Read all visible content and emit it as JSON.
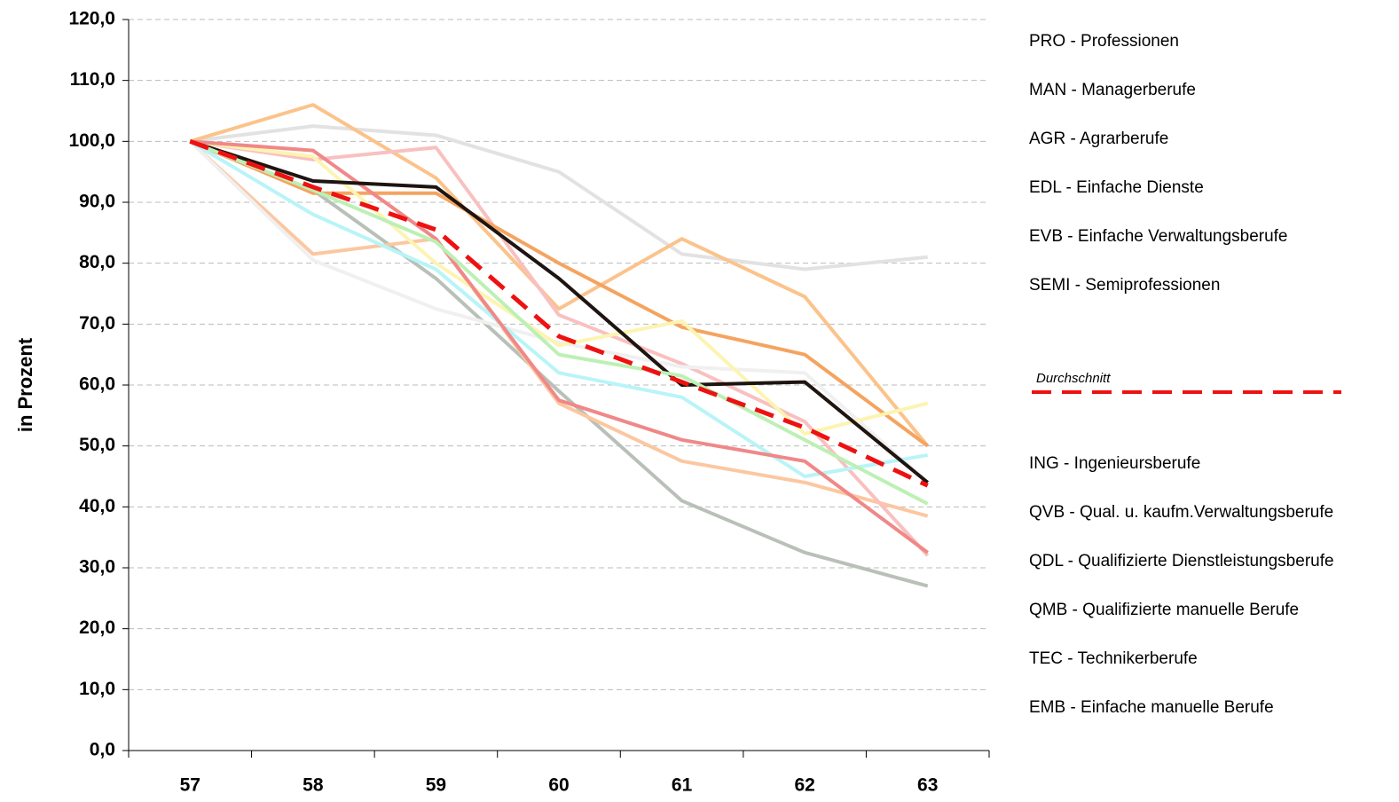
{
  "chart_data": {
    "type": "line",
    "y_label": "in Prozent",
    "categories": [
      "57",
      "58",
      "59",
      "60",
      "61",
      "62",
      "63"
    ],
    "ylim": [
      0,
      120
    ],
    "yticks": [
      {
        "value": 0,
        "label": "0,0"
      },
      {
        "value": 10,
        "label": "10,0"
      },
      {
        "value": 20,
        "label": "20,0"
      },
      {
        "value": 30,
        "label": "30,0"
      },
      {
        "value": 40,
        "label": "40,0"
      },
      {
        "value": 50,
        "label": "50,0"
      },
      {
        "value": 60,
        "label": "60,0"
      },
      {
        "value": 70,
        "label": "70,0"
      },
      {
        "value": 80,
        "label": "80,0"
      },
      {
        "value": 90,
        "label": "90,0"
      },
      {
        "value": 100,
        "label": "100,0"
      },
      {
        "value": 110,
        "label": "110,0"
      },
      {
        "value": 120,
        "label": "120,0"
      }
    ],
    "grid": true,
    "series": [
      {
        "name": "PRO - Professionen",
        "color": "#e2e2e2",
        "values": [
          100,
          102.5,
          101,
          95,
          81.5,
          79,
          81
        ]
      },
      {
        "name": "MAN - Managerberufe",
        "color": "#fbc38b",
        "values": [
          100,
          106,
          94,
          72.5,
          84,
          74.5,
          50
        ]
      },
      {
        "name": "AGR - Agrarberufe",
        "color": "#b8c0b8",
        "values": [
          100,
          92,
          77.5,
          59,
          41,
          32.5,
          27
        ]
      },
      {
        "name": "EDL - Einfache Dienste",
        "color": "#fcc7a0",
        "values": [
          100,
          81.5,
          84,
          57,
          47.5,
          44,
          38.5
        ]
      },
      {
        "name": "EVB - Einfache Verwaltungsberufe",
        "color": "#f9c0c0",
        "values": [
          100,
          97,
          99,
          71.5,
          63.5,
          54,
          32
        ]
      },
      {
        "name": "SEMI - Semiprofessionen",
        "color": "#f0f0f0",
        "values": [
          100,
          80.5,
          72.5,
          67,
          63,
          62,
          44
        ]
      },
      {
        "name": "Durchschnitt",
        "color": "#ee1111",
        "dashed": true,
        "values": [
          100,
          92.5,
          85.5,
          68,
          60.5,
          53,
          43.5
        ]
      },
      {
        "name": "ING - Ingenieursberufe",
        "color": "#f4a460",
        "values": [
          100,
          91.5,
          91.5,
          80,
          69.5,
          65,
          50
        ]
      },
      {
        "name": "QVB - Qual. u. kaufm.Verwaltungsberufe",
        "color": "#fcf4b0",
        "values": [
          100,
          97.5,
          80,
          66.5,
          70.5,
          52,
          57
        ]
      },
      {
        "name": "QDL - Qualifizierte Dienstleistungsberufe",
        "color": "#b8f4f8",
        "values": [
          100,
          88,
          79,
          62,
          58,
          45,
          48.5
        ]
      },
      {
        "name": "QMB - Qualifizierte manuelle Berufe",
        "color": "#f08888",
        "values": [
          100,
          98.5,
          84,
          57.5,
          51,
          47.5,
          32.5
        ]
      },
      {
        "name": "TEC - Technikerberufe",
        "color": "#1e1410",
        "values": [
          100,
          93.5,
          92.5,
          77.5,
          60,
          60.5,
          44
        ]
      },
      {
        "name": "EMB - Einfache manuelle Berufe",
        "color": "#bcf0b4",
        "values": [
          100,
          92,
          83.5,
          65,
          61.5,
          51,
          40.5
        ]
      }
    ]
  }
}
